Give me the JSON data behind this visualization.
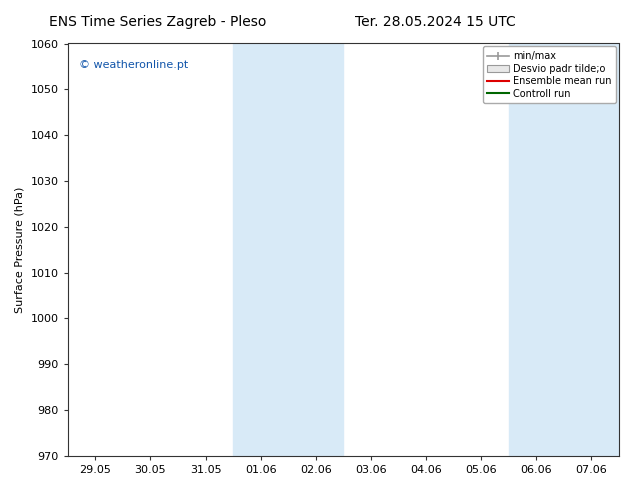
{
  "title_left": "ENS Time Series Zagreb - Pleso",
  "title_right": "Ter. 28.05.2024 15 UTC",
  "ylabel": "Surface Pressure (hPa)",
  "ylim": [
    970,
    1060
  ],
  "yticks": [
    970,
    980,
    990,
    1000,
    1010,
    1020,
    1030,
    1040,
    1050,
    1060
  ],
  "xlim_dates": [
    "29.05",
    "30.05",
    "31.05",
    "01.06",
    "02.06",
    "03.06",
    "04.06",
    "05.06",
    "06.06",
    "07.06"
  ],
  "xtick_positions": [
    0,
    1,
    2,
    3,
    4,
    5,
    6,
    7,
    8,
    9
  ],
  "watermark": "© weatheronline.pt",
  "legend_entries": [
    "min/max",
    "Desvio padr tilde;o",
    "Ensemble mean run",
    "Controll run"
  ],
  "shaded_bands": [
    {
      "x_start": 3,
      "x_end": 4,
      "color": "#d8eaf7"
    },
    {
      "x_start": 8,
      "x_end": 9,
      "color": "#d8eaf7"
    }
  ],
  "background_color": "#ffffff",
  "plot_bg_color": "#ffffff",
  "title_fontsize": 10,
  "axis_label_fontsize": 8,
  "tick_fontsize": 8
}
